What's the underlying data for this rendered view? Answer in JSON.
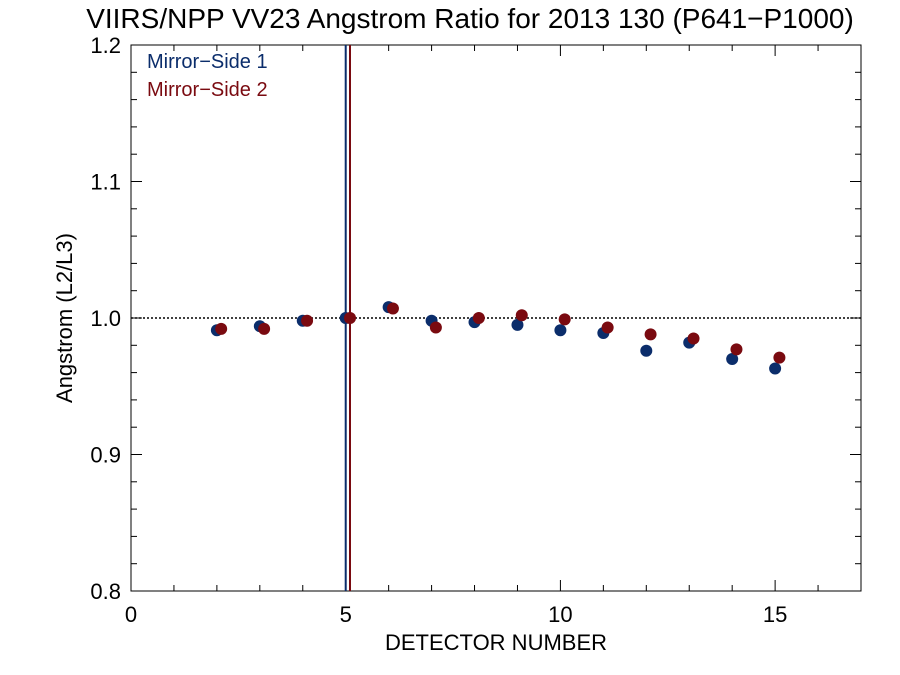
{
  "chart_data": {
    "type": "scatter",
    "title": "VIIRS/NPP VV23 Angstrom Ratio for 2013 130 (P641−P1000)",
    "xlabel": "DETECTOR NUMBER",
    "ylabel": "Angstrom (L2/L3)",
    "xlim": [
      0,
      17
    ],
    "ylim": [
      0.8,
      1.2
    ],
    "xticks": [
      0,
      5,
      10,
      15
    ],
    "xtick_labels": [
      "0",
      "5",
      "10",
      "15"
    ],
    "yticks": [
      0.8,
      0.9,
      1.0,
      1.1,
      1.2
    ],
    "ytick_labels": [
      "0.8",
      "0.9",
      "1.0",
      "1.1",
      "1.2"
    ],
    "reference_line": {
      "y": 1.0,
      "style": "dotted",
      "color": "#000000"
    },
    "vertical_lines": [
      {
        "x": 5.0,
        "color": "#0b2d6b"
      },
      {
        "x": 5.1,
        "color": "#7a0a10"
      }
    ],
    "legend": {
      "placement": "top-left",
      "style": "text-only"
    },
    "series": [
      {
        "name": "Mirror−Side 1",
        "color": "#0b2d6b",
        "x": [
          2,
          3,
          4,
          5,
          6,
          7,
          8,
          9,
          10,
          11,
          12,
          13,
          14,
          15
        ],
        "y": [
          0.991,
          0.994,
          0.998,
          1.0,
          1.008,
          0.998,
          0.997,
          0.995,
          0.991,
          0.989,
          0.976,
          0.982,
          0.97,
          0.963
        ]
      },
      {
        "name": "Mirror−Side 2",
        "color": "#7a0a10",
        "x": [
          2.1,
          3.1,
          4.1,
          5.1,
          6.1,
          7.1,
          8.1,
          9.1,
          10.1,
          11.1,
          12.1,
          13.1,
          14.1,
          15.1
        ],
        "y": [
          0.992,
          0.992,
          0.998,
          1.0,
          1.007,
          0.993,
          1.0,
          1.002,
          0.999,
          0.993,
          0.988,
          0.985,
          0.977,
          0.971
        ]
      }
    ]
  }
}
